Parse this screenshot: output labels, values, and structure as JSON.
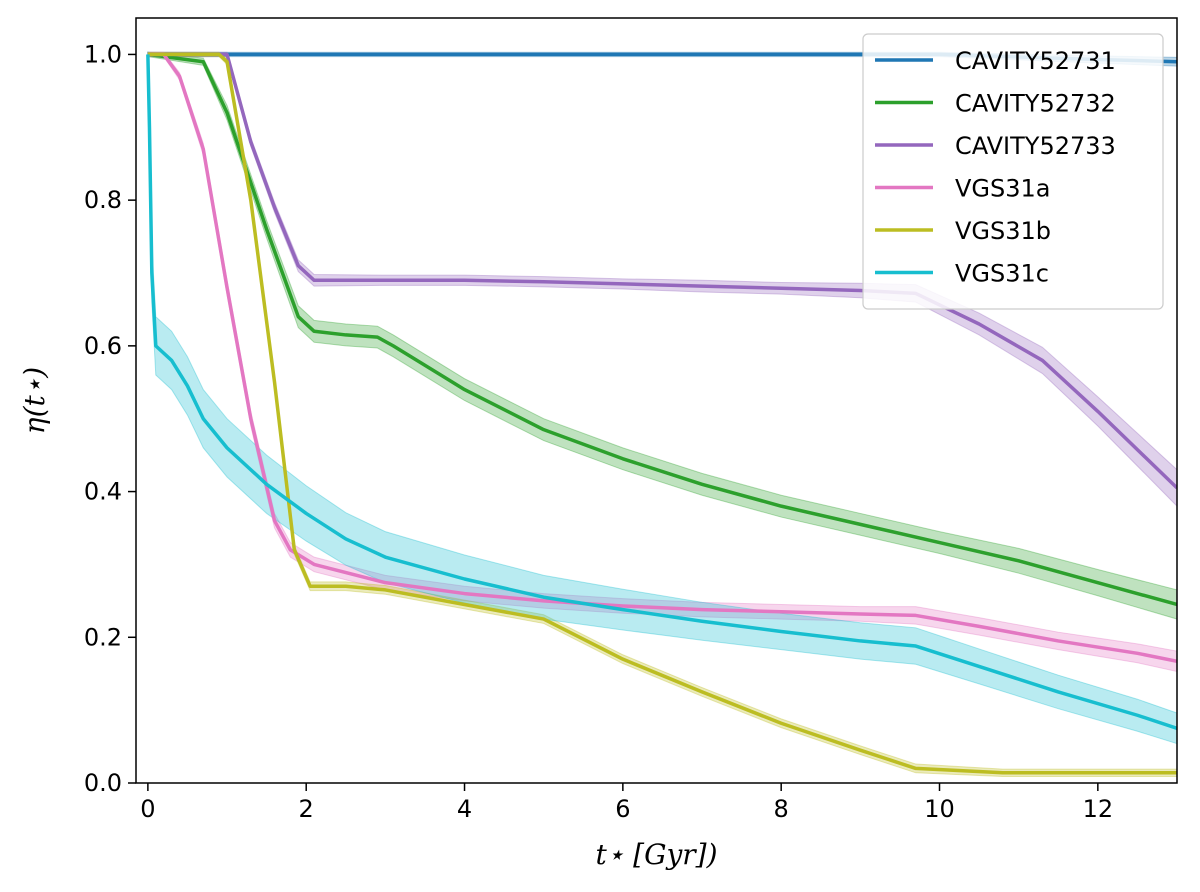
{
  "chart_data": {
    "type": "line",
    "title": "",
    "xlabel": "t⋆ [Gyr])",
    "ylabel": "η(t⋆)",
    "xlim": [
      -0.15,
      13.0
    ],
    "ylim": [
      0.0,
      1.05
    ],
    "xticks": [
      0,
      2,
      4,
      6,
      8,
      10,
      12
    ],
    "yticks": [
      0.0,
      0.2,
      0.4,
      0.6,
      0.8,
      1.0
    ],
    "xtick_labels": [
      "0",
      "2",
      "4",
      "6",
      "8",
      "10",
      "12"
    ],
    "ytick_labels": [
      "0.0",
      "0.2",
      "0.4",
      "0.6",
      "0.8",
      "1.0"
    ],
    "grid": false,
    "legend_position": "top-right",
    "series": [
      {
        "name": "CAVITY52731",
        "color": "#1f77b4",
        "x": [
          0,
          1,
          2,
          4,
          6,
          8,
          10,
          12,
          13
        ],
        "y": [
          1.0,
          1.0,
          1.0,
          1.0,
          1.0,
          1.0,
          1.0,
          0.993,
          0.99
        ],
        "band": [
          0.003,
          0.003,
          0.003,
          0.003,
          0.003,
          0.003,
          0.003,
          0.005,
          0.006
        ]
      },
      {
        "name": "CAVITY52732",
        "color": "#2ca02c",
        "x": [
          0,
          0.7,
          1.0,
          1.5,
          1.9,
          2.1,
          2.5,
          2.9,
          3.1,
          4,
          5,
          6,
          7,
          8,
          9,
          10,
          11,
          12,
          13
        ],
        "y": [
          1.0,
          0.99,
          0.92,
          0.76,
          0.64,
          0.62,
          0.615,
          0.612,
          0.6,
          0.54,
          0.485,
          0.445,
          0.41,
          0.38,
          0.355,
          0.33,
          0.305,
          0.275,
          0.245
        ],
        "band": [
          0.003,
          0.005,
          0.01,
          0.012,
          0.015,
          0.015,
          0.015,
          0.015,
          0.015,
          0.015,
          0.015,
          0.015,
          0.015,
          0.015,
          0.015,
          0.015,
          0.017,
          0.018,
          0.02
        ]
      },
      {
        "name": "CAVITY52733",
        "color": "#9467bd",
        "x": [
          0,
          1.0,
          1.3,
          1.6,
          1.9,
          2.1,
          3,
          4,
          5,
          6,
          7,
          8,
          9,
          9.7,
          10.5,
          11.3,
          12,
          13
        ],
        "y": [
          1.0,
          1.0,
          0.88,
          0.79,
          0.71,
          0.69,
          0.69,
          0.69,
          0.688,
          0.685,
          0.682,
          0.679,
          0.676,
          0.672,
          0.63,
          0.58,
          0.51,
          0.405
        ],
        "band": [
          0.003,
          0.003,
          0.006,
          0.007,
          0.008,
          0.008,
          0.007,
          0.007,
          0.007,
          0.007,
          0.008,
          0.008,
          0.01,
          0.012,
          0.015,
          0.018,
          0.02,
          0.025
        ]
      },
      {
        "name": "VGS31a",
        "color": "#e377c2",
        "x": [
          0,
          0.2,
          0.4,
          0.7,
          1.0,
          1.3,
          1.6,
          1.8,
          2.1,
          3,
          4,
          5,
          6,
          7,
          8,
          9,
          9.7,
          10.5,
          11.5,
          12.5,
          13
        ],
        "y": [
          1.0,
          1.0,
          0.97,
          0.87,
          0.68,
          0.5,
          0.36,
          0.32,
          0.3,
          0.275,
          0.26,
          0.25,
          0.243,
          0.238,
          0.235,
          0.232,
          0.23,
          0.215,
          0.195,
          0.178,
          0.167
        ],
        "band": [
          0.003,
          0.003,
          0.005,
          0.008,
          0.01,
          0.01,
          0.01,
          0.01,
          0.01,
          0.01,
          0.01,
          0.01,
          0.01,
          0.01,
          0.01,
          0.01,
          0.012,
          0.012,
          0.012,
          0.013,
          0.014
        ]
      },
      {
        "name": "VGS31b",
        "color": "#bcbd22",
        "x": [
          0,
          0.9,
          1.0,
          1.3,
          1.6,
          1.85,
          2.05,
          2.5,
          3,
          4,
          5,
          6,
          7,
          8,
          9,
          9.7,
          10.8,
          12,
          13
        ],
        "y": [
          1.0,
          1.0,
          0.99,
          0.8,
          0.55,
          0.32,
          0.27,
          0.27,
          0.265,
          0.245,
          0.225,
          0.17,
          0.125,
          0.082,
          0.045,
          0.02,
          0.014,
          0.014,
          0.014
        ],
        "band": [
          0.003,
          0.003,
          0.004,
          0.005,
          0.005,
          0.006,
          0.006,
          0.006,
          0.006,
          0.006,
          0.006,
          0.006,
          0.006,
          0.006,
          0.006,
          0.006,
          0.005,
          0.005,
          0.005
        ]
      },
      {
        "name": "VGS31c",
        "color": "#17becf",
        "x": [
          0,
          0.02,
          0.05,
          0.1,
          0.3,
          0.5,
          0.7,
          1.0,
          1.5,
          2,
          2.5,
          3,
          4,
          5,
          6,
          7,
          8,
          9,
          9.7,
          10.5,
          11.5,
          12.5,
          13
        ],
        "y": [
          1.0,
          0.9,
          0.7,
          0.6,
          0.58,
          0.545,
          0.5,
          0.46,
          0.41,
          0.37,
          0.335,
          0.31,
          0.28,
          0.255,
          0.238,
          0.222,
          0.208,
          0.195,
          0.188,
          0.16,
          0.125,
          0.093,
          0.075
        ],
        "band": [
          0.004,
          0.02,
          0.04,
          0.04,
          0.04,
          0.04,
          0.04,
          0.04,
          0.04,
          0.038,
          0.036,
          0.035,
          0.033,
          0.03,
          0.028,
          0.026,
          0.025,
          0.025,
          0.025,
          0.024,
          0.023,
          0.022,
          0.021
        ]
      }
    ]
  }
}
